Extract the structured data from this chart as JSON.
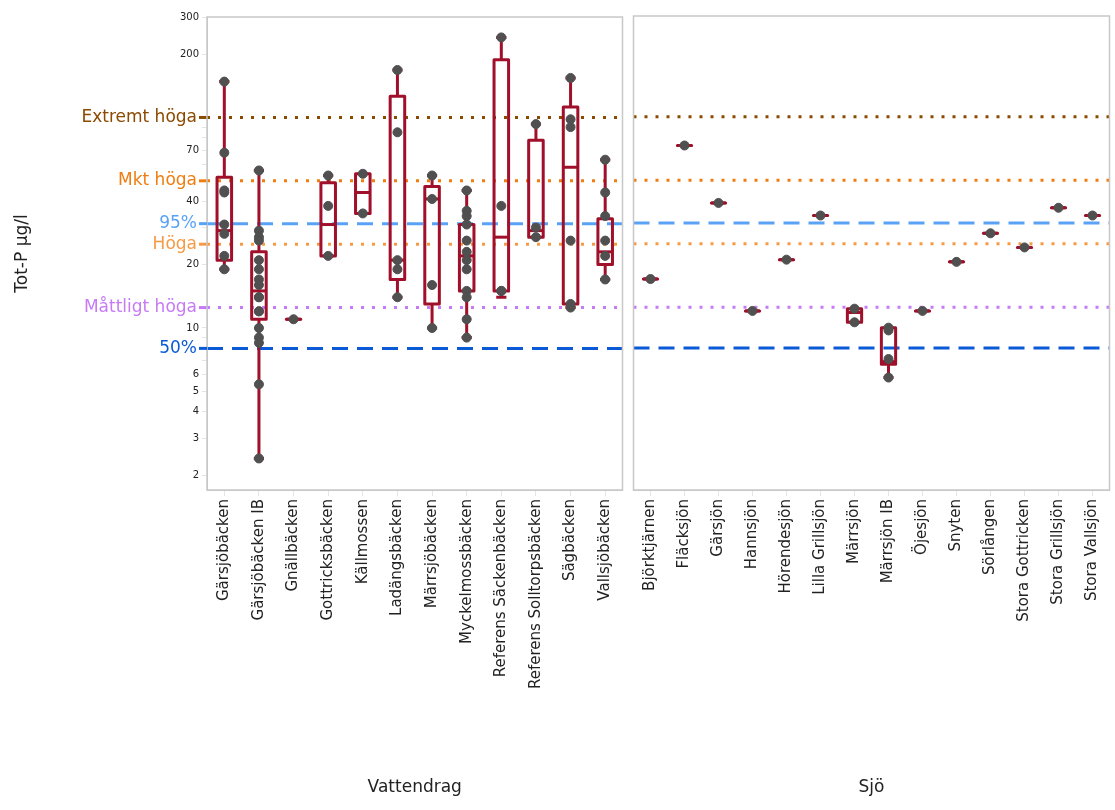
{
  "chart_data": [
    {
      "type": "box",
      "ylabel": "Tot-P µg/l",
      "xlabel": "Vattendrag",
      "log": "y",
      "grid": false,
      "legend": false,
      "marker": "circle",
      "ylim": [
        1.7,
        300
      ],
      "yticks": [
        2,
        3,
        4,
        5,
        6,
        {
          "value": 7,
          "label": null
        },
        {
          "value": 8,
          "label": null
        },
        {
          "value": 9,
          "label": null
        },
        10,
        20,
        {
          "value": 30,
          "label": null
        },
        40,
        {
          "value": 50,
          "label": null
        },
        {
          "value": 60,
          "label": null
        },
        70,
        {
          "value": 80,
          "label": null
        },
        {
          "value": 90,
          "label": null
        },
        {
          "value": 100,
          "label": null
        },
        200,
        300
      ],
      "categories": [
        "Gärsjöbäcken",
        "Gärsjöbäcken IB",
        "Gnällbäcken",
        "Gottricksbäcken",
        "Källmossen",
        "Ladängsbäcken",
        "Märrsjöbäcken",
        "Myckelmossbäcken",
        "Referens Säckenbäcken",
        "Referens Solltorpsbäcken",
        "Sägbäcken",
        "Vallsjöbäcken"
      ],
      "ref_lines": [
        {
          "axis": "y",
          "value": 100,
          "label": "Extremt höga",
          "color": "#8b4a00",
          "line_style": "dotted"
        },
        {
          "axis": "y",
          "value": 50,
          "label": "Mkt höga",
          "color": "#f07d10",
          "line_style": "dotted"
        },
        {
          "axis": "y",
          "value": 31.3,
          "color": "#5aa2f5",
          "line_style": "dashed"
        },
        {
          "axis": "y",
          "value": 25,
          "label": "Höga",
          "color": "#f79a45",
          "line_style": "dotted"
        },
        {
          "axis": "y",
          "value": 12.5,
          "label": "Måttligt höga",
          "color": "#c77af5",
          "line_style": "dotted"
        },
        {
          "axis": "y",
          "value": 8,
          "color": "#0a5ad8",
          "line_style": "dashed"
        }
      ],
      "annotations": [
        "95%",
        "50%"
      ],
      "series": [
        {
          "type": "scatter",
          "color": "#505050",
          "x": [
            "Gärsjöbäcken",
            "Gärsjöbäcken",
            "Gärsjöbäcken",
            "Gärsjöbäcken",
            "Gärsjöbäcken",
            "Gärsjöbäcken",
            "Gärsjöbäcken",
            "Gärsjöbäcken",
            "Gärsjöbäcken IB",
            "Gärsjöbäcken IB",
            "Gärsjöbäcken IB",
            "Gärsjöbäcken IB",
            "Gärsjöbäcken IB",
            "Gärsjöbäcken IB",
            "Gärsjöbäcken IB",
            "Gärsjöbäcken IB",
            "Gärsjöbäcken IB",
            "Gärsjöbäcken IB",
            "Gärsjöbäcken IB",
            "Gärsjöbäcken IB",
            "Gärsjöbäcken IB",
            "Gärsjöbäcken IB",
            "Gärsjöbäcken IB",
            "Gärsjöbäcken IB",
            "Gärsjöbäcken IB",
            "Gnällbäcken",
            "Gottricksbäcken",
            "Gottricksbäcken",
            "Gottricksbäcken",
            "Källmossen",
            "Källmossen",
            "Ladängsbäcken",
            "Ladängsbäcken",
            "Ladängsbäcken",
            "Ladängsbäcken",
            "Ladängsbäcken",
            "Märrsjöbäcken",
            "Märrsjöbäcken",
            "Märrsjöbäcken",
            "Märrsjöbäcken",
            "Myckelmossbäcken",
            "Myckelmossbäcken",
            "Myckelmossbäcken",
            "Myckelmossbäcken",
            "Myckelmossbäcken",
            "Myckelmossbäcken",
            "Myckelmossbäcken",
            "Myckelmossbäcken",
            "Myckelmossbäcken",
            "Myckelmossbäcken",
            "Myckelmossbäcken",
            "Myckelmossbäcken",
            "Referens Säckenbäcken",
            "Referens Säckenbäcken",
            "Referens Säckenbäcken",
            "Referens Säckenbäcken",
            "Referens Solltorpsbäcken",
            "Referens Solltorpsbäcken",
            "Referens Solltorpsbäcken",
            "Sägbäcken",
            "Sägbäcken",
            "Sägbäcken",
            "Sägbäcken",
            "Sägbäcken",
            "Sägbäcken",
            "Vallsjöbäcken",
            "Vallsjöbäcken",
            "Vallsjöbäcken",
            "Vallsjöbäcken",
            "Vallsjöbäcken",
            "Vallsjöbäcken"
          ],
          "values": [
            148,
            68,
            45,
            44,
            31,
            28,
            22,
            19,
            56,
            29,
            27,
            26,
            21,
            19,
            17,
            16,
            14,
            14,
            12,
            12,
            10,
            9,
            8.5,
            5.4,
            2.4,
            11,
            53,
            38,
            22,
            54,
            35,
            168,
            85,
            21,
            19,
            14,
            53,
            41,
            16,
            10,
            45,
            36,
            34,
            31,
            26,
            23,
            21,
            19,
            15,
            14,
            11,
            9,
            240,
            38,
            15,
            15,
            93,
            30,
            27,
            154,
            98,
            90,
            26,
            13,
            12.5,
            63,
            44,
            34,
            26,
            22,
            17
          ]
        },
        {
          "color": "#a0102a",
          "boxes": [
            {
              "low": 19,
              "q1": 21,
              "median": 29,
              "q3": 52,
              "high": 148
            },
            {
              "low": 2.4,
              "q1": 11,
              "median": 15,
              "q3": 23,
              "high": 56
            },
            {
              "low": 11,
              "q1": 11,
              "median": 11,
              "q3": 11,
              "high": 11
            },
            {
              "low": 22,
              "q1": 22,
              "median": 31,
              "q3": 49,
              "high": 53
            },
            {
              "low": 35,
              "q1": 35,
              "median": 44,
              "q3": 54,
              "high": 54
            },
            {
              "low": 14,
              "q1": 17,
              "median": 21,
              "q3": 126,
              "high": 168
            },
            {
              "low": 10,
              "q1": 13,
              "median": 41,
              "q3": 47,
              "high": 53
            },
            {
              "low": 9,
              "q1": 15,
              "median": 22,
              "q3": 31,
              "high": 45
            },
            {
              "low": 14,
              "q1": 15,
              "median": 27,
              "q3": 188,
              "high": 240
            },
            {
              "low": 27,
              "q1": 27,
              "median": 29,
              "q3": 78,
              "high": 93
            },
            {
              "low": 12.5,
              "q1": 13,
              "median": 58,
              "q3": 112,
              "high": 154
            },
            {
              "low": 17,
              "q1": 20,
              "median": 23,
              "q3": 33,
              "high": 63
            }
          ]
        }
      ]
    },
    {
      "type": "box",
      "xlabel": "Sjö",
      "log": "y",
      "grid": false,
      "legend": false,
      "marker": "circle",
      "tick_labels": "x",
      "ylim": [
        1.7,
        300
      ],
      "categories": [
        "Björktjärnen",
        "Fläcksjön",
        "Gärsjön",
        "Hannsjön",
        "Hörendesjön",
        "Lilla Grillsjön",
        "Märrsjön",
        "Märrsjön IB",
        "Öjesjön",
        "Snyten",
        "Sörlången",
        "Stora Gottricken",
        "Stora Grillsjön",
        "Stora Vallsjön"
      ],
      "ref_lines": [
        {
          "axis": "y",
          "value": 100,
          "color": "#8b4a00",
          "line_style": "dotted"
        },
        {
          "axis": "y",
          "value": 50,
          "color": "#f07d10",
          "line_style": "dotted"
        },
        {
          "axis": "y",
          "value": 31.3,
          "color": "#5aa2f5",
          "line_style": "dashed"
        },
        {
          "axis": "y",
          "value": 25,
          "color": "#f79a45",
          "line_style": "dotted"
        },
        {
          "axis": "y",
          "value": 12.5,
          "color": "#c77af5",
          "line_style": "dotted"
        },
        {
          "axis": "y",
          "value": 8,
          "color": "#0a5ad8",
          "line_style": "dashed"
        }
      ],
      "series": [
        {
          "type": "scatter",
          "color": "#505050",
          "x": [
            "Björktjärnen",
            "Fläcksjön",
            "Gärsjön",
            "Hannsjön",
            "Hörendesjön",
            "Lilla Grillsjön",
            "Märrsjön",
            "Märrsjön",
            "Märrsjön IB",
            "Märrsjön IB",
            "Märrsjön IB",
            "Märrsjön IB",
            "Öjesjön",
            "Snyten",
            "Sörlången",
            "Stora Gottricken",
            "Stora Grillsjön",
            "Stora Vallsjön"
          ],
          "values": [
            17,
            73,
            39,
            12,
            21,
            34,
            12.3,
            10.6,
            10,
            9.7,
            7.1,
            5.8,
            12,
            20.5,
            28,
            24,
            37,
            34
          ]
        },
        {
          "color": "#a0102a",
          "boxes": [
            {
              "low": 17,
              "q1": 17,
              "median": 17,
              "q3": 17,
              "high": 17
            },
            {
              "low": 73,
              "q1": 73,
              "median": 73,
              "q3": 73,
              "high": 73
            },
            {
              "low": 39,
              "q1": 39,
              "median": 39,
              "q3": 39,
              "high": 39
            },
            {
              "low": 12,
              "q1": 12,
              "median": 12,
              "q3": 12,
              "high": 12
            },
            {
              "low": 21,
              "q1": 21,
              "median": 21,
              "q3": 21,
              "high": 21
            },
            {
              "low": 34,
              "q1": 34,
              "median": 34,
              "q3": 34,
              "high": 34
            },
            {
              "low": 10.6,
              "q1": 10.6,
              "median": 11.8,
              "q3": 12.3,
              "high": 12.3
            },
            {
              "low": 5.8,
              "q1": 6.7,
              "median": 6.9,
              "q3": 10,
              "high": 10
            },
            {
              "low": 12,
              "q1": 12,
              "median": 12,
              "q3": 12,
              "high": 12
            },
            {
              "low": 20.5,
              "q1": 20.5,
              "median": 20.5,
              "q3": 20.5,
              "high": 20.5
            },
            {
              "low": 28,
              "q1": 28,
              "median": 28,
              "q3": 28,
              "high": 28
            },
            {
              "low": 24,
              "q1": 24,
              "median": 24,
              "q3": 24,
              "high": 24
            },
            {
              "low": 37,
              "q1": 37,
              "median": 37,
              "q3": 37,
              "high": 37
            },
            {
              "low": 34,
              "q1": 34,
              "median": 34,
              "q3": 34,
              "high": 34
            }
          ]
        }
      ]
    }
  ]
}
